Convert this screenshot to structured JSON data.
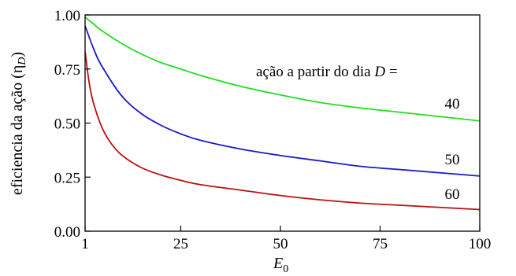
{
  "chart_data": {
    "type": "line",
    "title": "",
    "xlabel": {
      "main": "E",
      "sub": "0"
    },
    "ylabel": {
      "main": "eficiencia da ação (η",
      "sub": "D",
      "close": ")"
    },
    "xlim": [
      1,
      100
    ],
    "ylim": [
      0,
      1
    ],
    "xticks": [
      {
        "value": 1,
        "label": "1"
      },
      {
        "value": 25,
        "label": "25"
      },
      {
        "value": 50,
        "label": "50"
      },
      {
        "value": 75,
        "label": "75"
      },
      {
        "value": 100,
        "label": "100"
      }
    ],
    "yticks": [
      {
        "value": 0,
        "label": "0.00"
      },
      {
        "value": 0.25,
        "label": "0.25"
      },
      {
        "value": 0.5,
        "label": "0.50"
      },
      {
        "value": 0.75,
        "label": "0.75"
      },
      {
        "value": 1,
        "label": "1.00"
      }
    ],
    "grid": false,
    "annotation": {
      "prefix": "ação a partir do dia ",
      "var": "D",
      "suffix": " ="
    },
    "series": [
      {
        "name": "40",
        "color": "#22dd22",
        "x": [
          1,
          3,
          5,
          10,
          15,
          20,
          25,
          30,
          40,
          50,
          60,
          70,
          80,
          90,
          100
        ],
        "y": [
          0.99,
          0.96,
          0.93,
          0.87,
          0.82,
          0.78,
          0.75,
          0.72,
          0.67,
          0.63,
          0.595,
          0.57,
          0.55,
          0.53,
          0.51
        ]
      },
      {
        "name": "50",
        "color": "#1a1acc",
        "x": [
          1,
          3,
          5,
          10,
          15,
          20,
          25,
          30,
          40,
          50,
          60,
          70,
          80,
          90,
          100
        ],
        "y": [
          0.95,
          0.85,
          0.77,
          0.63,
          0.545,
          0.49,
          0.45,
          0.42,
          0.38,
          0.35,
          0.325,
          0.3,
          0.285,
          0.27,
          0.255
        ]
      },
      {
        "name": "60",
        "color": "#bb1111",
        "x": [
          1,
          2,
          3,
          5,
          7,
          10,
          15,
          20,
          25,
          30,
          40,
          50,
          60,
          70,
          80,
          90,
          100
        ],
        "y": [
          0.83,
          0.69,
          0.6,
          0.49,
          0.42,
          0.355,
          0.295,
          0.26,
          0.235,
          0.215,
          0.19,
          0.165,
          0.145,
          0.13,
          0.12,
          0.11,
          0.1
        ]
      }
    ]
  }
}
